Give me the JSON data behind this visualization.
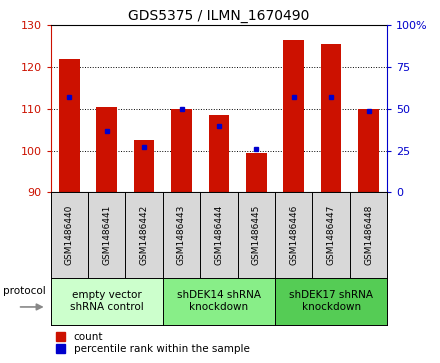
{
  "title": "GDS5375 / ILMN_1670490",
  "samples": [
    "GSM1486440",
    "GSM1486441",
    "GSM1486442",
    "GSM1486443",
    "GSM1486444",
    "GSM1486445",
    "GSM1486446",
    "GSM1486447",
    "GSM1486448"
  ],
  "counts": [
    122.0,
    110.5,
    102.5,
    110.0,
    108.5,
    99.5,
    126.5,
    125.5,
    110.0
  ],
  "percentile_ranks": [
    57.0,
    37.0,
    27.0,
    50.0,
    40.0,
    26.0,
    57.0,
    57.0,
    49.0
  ],
  "ymin": 90,
  "ymax": 130,
  "yticks_left": [
    90,
    100,
    110,
    120,
    130
  ],
  "yticks_right": [
    0,
    25,
    50,
    75,
    100
  ],
  "bar_color": "#cc1100",
  "dot_color": "#0000cc",
  "groups": [
    {
      "label": "empty vector\nshRNA control",
      "start": 0,
      "end": 3,
      "color": "#ccffcc"
    },
    {
      "label": "shDEK14 shRNA\nknockdown",
      "start": 3,
      "end": 6,
      "color": "#88ee88"
    },
    {
      "label": "shDEK17 shRNA\nknockdown",
      "start": 6,
      "end": 9,
      "color": "#55cc55"
    }
  ],
  "legend_count_color": "#cc1100",
  "legend_pct_color": "#0000cc",
  "protocol_label": "protocol",
  "title_fontsize": 10,
  "tick_fontsize": 8,
  "sample_fontsize": 6.5,
  "group_fontsize": 7.5,
  "legend_fontsize": 7.5
}
